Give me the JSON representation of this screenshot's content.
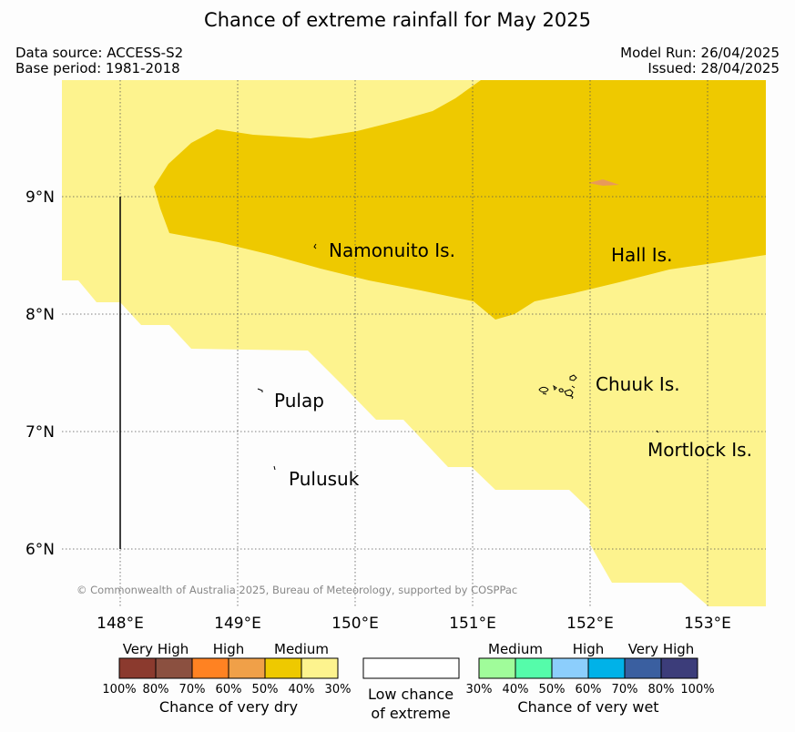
{
  "title": "Chance of extreme rainfall for May 2025",
  "meta": {
    "data_source": "Data source: ACCESS-S2",
    "base_period": "Base period: 1981-2018",
    "model_run": "Model Run: 26/04/2025",
    "issued": "Issued: 28/04/2025"
  },
  "map": {
    "lat_labels": [
      "9°N",
      "8°N",
      "7°N",
      "6°N"
    ],
    "lon_labels": [
      "148°E",
      "149°E",
      "150°E",
      "151°E",
      "152°E",
      "153°E"
    ],
    "places": {
      "namonuito": "Namonuito Is.",
      "hall": "Hall Is.",
      "pulap": "Pulap",
      "chuuk": "Chuuk Is.",
      "mortlock": "Mortlock Is.",
      "pulusuk": "Pulusuk"
    },
    "copyright": "© Commonwealth of Australia 2025, Bureau of Meteorology, supported by COSPPac",
    "colors": {
      "low": "#fdf38e",
      "medium": "#eec900",
      "orange_patch": "#e89a5a",
      "background": "#fdfdfd"
    }
  },
  "legend": {
    "dry": {
      "labels": {
        "very_high": "Very High",
        "high": "High",
        "medium": "Medium"
      },
      "colors": [
        "#8b3a2e",
        "#8b5040",
        "#ff8222",
        "#f0a048",
        "#eec900",
        "#fdf38e"
      ],
      "ticks": [
        "100%",
        "80%",
        "70%",
        "60%",
        "50%",
        "40%",
        "30%"
      ],
      "caption": "Chance of very dry"
    },
    "low": {
      "caption_line1": "Low chance",
      "caption_line2": "of extreme"
    },
    "wet": {
      "labels": {
        "medium": "Medium",
        "high": "High",
        "very_high": "Very High"
      },
      "colors": [
        "#a0fc9a",
        "#55fcaa",
        "#8ccefc",
        "#00b2e8",
        "#3a5fa0",
        "#3c3d7a"
      ],
      "ticks": [
        "30%",
        "40%",
        "50%",
        "60%",
        "70%",
        "80%",
        "100%"
      ],
      "caption": "Chance of very wet"
    }
  }
}
